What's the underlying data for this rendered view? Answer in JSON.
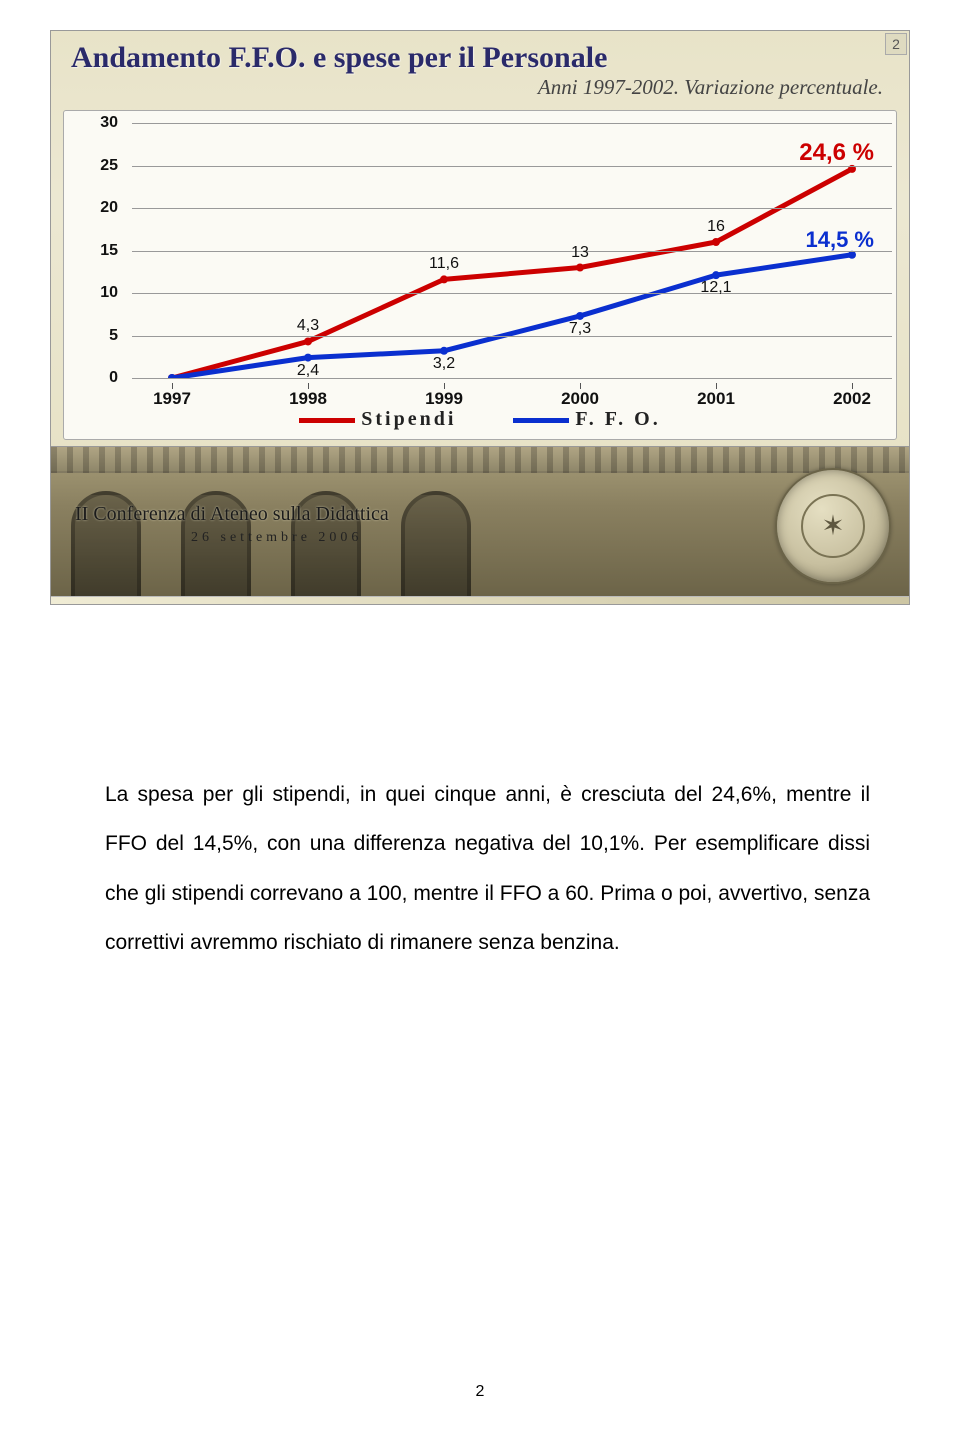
{
  "slide": {
    "page_badge": "2",
    "title": "Andamento F.F.O. e spese per il Personale",
    "subtitle": "Anni 1997-2002. Variazione percentuale.",
    "footer_title": "II Conferenza di Ateneo sulla Didattica",
    "footer_date": "26 settembre 2006"
  },
  "chart": {
    "type": "line",
    "background_color": "#fbfaf4",
    "grid_color": "#999999",
    "ylim": [
      0,
      30
    ],
    "ytick_step": 5,
    "yticks": [
      "0",
      "5",
      "10",
      "15",
      "20",
      "25",
      "30"
    ],
    "xticks": [
      "1997",
      "1998",
      "1999",
      "2000",
      "2001",
      "2002"
    ],
    "label_fontsize": 16,
    "series": [
      {
        "name": "Stipendi",
        "color": "#cc0000",
        "line_width": 5,
        "values": [
          0,
          4.3,
          11.6,
          13,
          16,
          24.6
        ],
        "labels": [
          "",
          "4,3",
          "11,6",
          "13",
          "16",
          ""
        ],
        "callout": "24,6 %",
        "callout_color": "#cc0000"
      },
      {
        "name": "F. F. O.",
        "color": "#0a2fcf",
        "line_width": 5,
        "values": [
          0,
          2.4,
          3.2,
          7.3,
          12.1,
          14.5
        ],
        "labels": [
          "",
          "2,4",
          "3,2",
          "7,3",
          "12,1",
          ""
        ],
        "callout": "14,5 %",
        "callout_color": "#0a2fcf"
      }
    ],
    "legend": {
      "items": [
        "Stipendi",
        "F. F. O."
      ]
    }
  },
  "paragraph": "La spesa per gli stipendi, in quei cinque anni, è cresciuta del 24,6%, mentre il FFO del 14,5%, con una differenza negativa del 10,1%. Per esemplificare dissi che gli stipendi correvano a 100, mentre il FFO a 60. Prima o poi, avvertivo, senza correttivi avremmo rischiato di rimanere senza benzina.",
  "page_number": "2"
}
